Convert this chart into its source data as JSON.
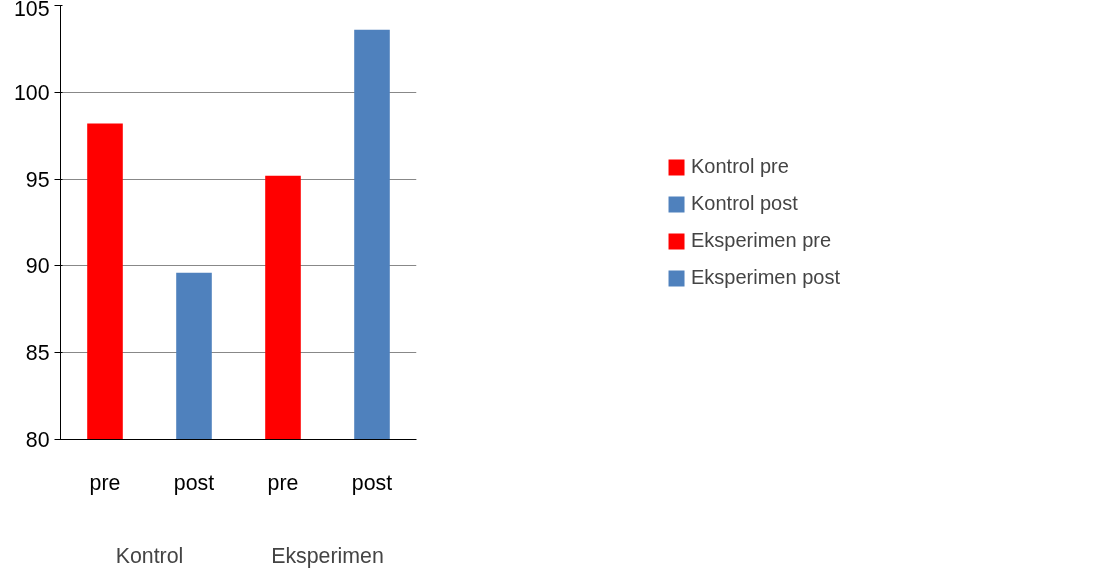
{
  "chart_data": {
    "type": "bar",
    "categories": [
      "pre",
      "post",
      "pre",
      "post"
    ],
    "series": [
      {
        "name": "Kontrol pre",
        "color": "#ff0000",
        "values": [
          98.2,
          null,
          null,
          null
        ]
      },
      {
        "name": "Kontrol post",
        "color": "#4f81bd",
        "values": [
          null,
          89.6,
          null,
          null
        ]
      },
      {
        "name": "Eksperimen pre",
        "color": "#ff0000",
        "values": [
          null,
          null,
          95.2,
          null
        ]
      },
      {
        "name": "Eksperimen post",
        "color": "#4f81bd",
        "values": [
          null,
          null,
          null,
          103.6
        ]
      }
    ],
    "annotations": [
      "Kontrol",
      "Eksperimen"
    ],
    "ylim": [
      80,
      105
    ],
    "yticks": [
      80,
      85,
      90,
      95,
      100,
      105
    ],
    "grid": "y",
    "legend": "right"
  }
}
